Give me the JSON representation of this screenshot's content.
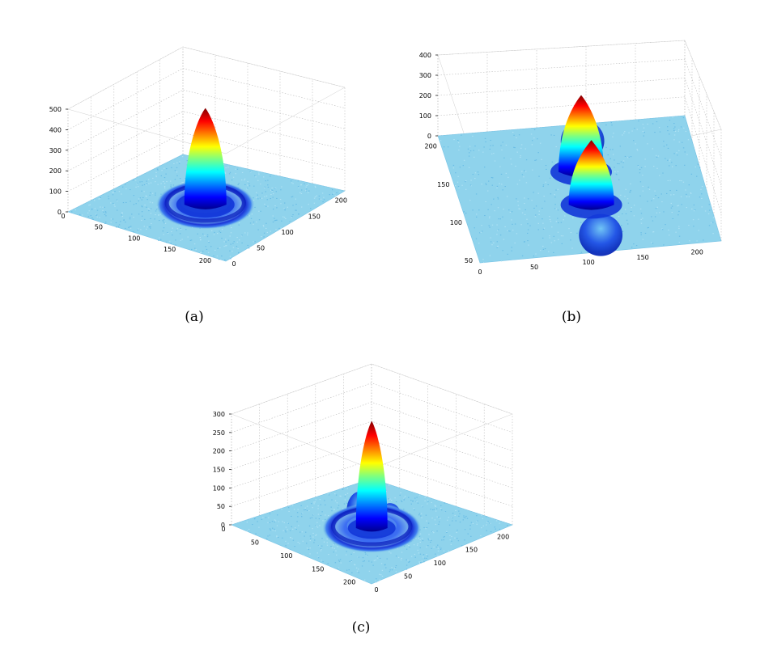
{
  "chart_data": [
    {
      "type": "surface",
      "caption": "(a)",
      "view": "isometric, peak facing viewer",
      "colormap": "jet",
      "grid": true,
      "x_ticks": [
        "0",
        "50",
        "100",
        "150",
        "200"
      ],
      "y_ticks": [
        "0",
        "50",
        "100",
        "150",
        "200"
      ],
      "z_ticks": [
        "0",
        "100",
        "200",
        "300",
        "400",
        "500"
      ],
      "xlim": [
        0,
        230
      ],
      "ylim": [
        0,
        230
      ],
      "zlim": [
        0,
        500
      ],
      "features": [
        {
          "kind": "central-peak",
          "x": 115,
          "y": 115,
          "height": 470
        },
        {
          "kind": "ring",
          "x": 115,
          "y": 115,
          "radius": 55,
          "height": 25
        }
      ]
    },
    {
      "type": "surface",
      "caption": "(b)",
      "view": "elevated side view",
      "colormap": "jet",
      "grid": true,
      "x_ticks": [
        "0",
        "50",
        "100",
        "150",
        "200"
      ],
      "y_ticks": [
        "50",
        "100",
        "150",
        "200"
      ],
      "z_ticks": [
        "0",
        "100",
        "200",
        "300",
        "400"
      ],
      "xlim": [
        0,
        230
      ],
      "ylim": [
        0,
        230
      ],
      "zlim": [
        0,
        400
      ],
      "features": [
        {
          "kind": "peak",
          "x": 85,
          "y": 120,
          "height": 380
        },
        {
          "kind": "peak",
          "x": 145,
          "y": 120,
          "height": 320
        },
        {
          "kind": "crescent",
          "x": 30,
          "y": 130,
          "height": 90
        },
        {
          "kind": "crescent",
          "x": 200,
          "y": 120,
          "height": 90
        }
      ]
    },
    {
      "type": "surface",
      "caption": "(c)",
      "view": "isometric, peak facing viewer",
      "colormap": "jet",
      "grid": true,
      "x_ticks": [
        "0",
        "50",
        "100",
        "150",
        "200"
      ],
      "y_ticks": [
        "0",
        "50",
        "100",
        "150",
        "200"
      ],
      "z_ticks": [
        "0",
        "50",
        "100",
        "150",
        "200",
        "250",
        "300"
      ],
      "xlim": [
        0,
        230
      ],
      "ylim": [
        0,
        230
      ],
      "zlim": [
        0,
        300
      ],
      "features": [
        {
          "kind": "central-peak",
          "x": 115,
          "y": 115,
          "height": 290
        },
        {
          "kind": "side-lobe",
          "x": 90,
          "y": 120,
          "height": 80
        },
        {
          "kind": "side-lobe",
          "x": 140,
          "y": 120,
          "height": 80
        },
        {
          "kind": "ring",
          "x": 115,
          "y": 115,
          "radius": 60,
          "height": 30
        }
      ]
    }
  ]
}
